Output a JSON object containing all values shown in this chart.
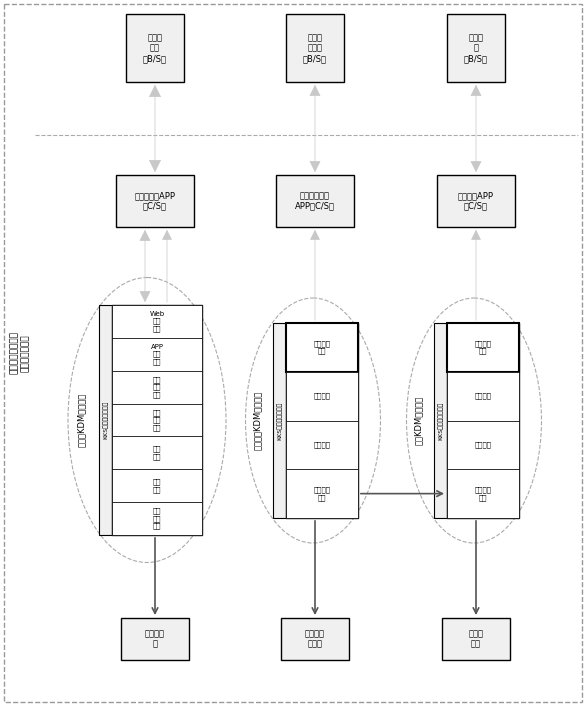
{
  "title": "集团水电状态监测\n与诊断分析系统",
  "bg_color": "#ffffff",
  "group1_label": "集团级KDM数据中心",
  "group2_label": "分公司级KDM数据中心",
  "group3_label": "厂级KDM数据中心",
  "kks1_label": "KKS编码管理与服务",
  "kks2_label": "KKS编码管理与服务",
  "kks3_label": "KKS编码管理与服务",
  "col1_boxes": [
    "Web\n应用\n服务",
    "APP\n发布\n服务",
    "诊断\n分析\n服务",
    "高频\n采集\n引擎",
    "数据\n调度",
    "数据\n存储",
    "采集\n通信\n接口"
  ],
  "col2_boxes": [
    "实时计算\n引擎",
    "数据调度",
    "数据存储",
    "采集通信\n接口"
  ],
  "col3_boxes": [
    "实时计算\n引擎",
    "数据调度",
    "数据存储",
    "采集通信\n接口"
  ],
  "app_box1": "集团级应用APP\n（C/S）",
  "app_box2": "分公司级应用\nAPP（C/S）",
  "app_box3": "厂级应用APP\n（C/S）",
  "bs_box1": "集团级\n应用\n（B/S）",
  "bs_box2": "分公司\n级应用\n（B/S）",
  "bs_box3": "厂级应\n用\n（B/S）",
  "src_box1": "外部数据\n源",
  "src_box2": "远程集控\n数据源",
  "src_box3": "电厂数\n据源"
}
